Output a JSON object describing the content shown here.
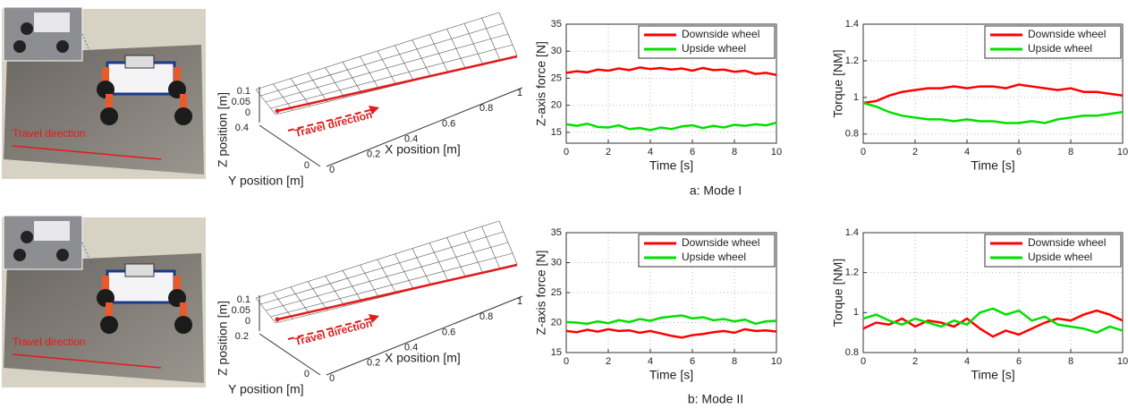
{
  "panels": [
    {
      "caption": "a: Mode I",
      "photo_label": "Travel  direction",
      "surface": {
        "annotation": "Travel direction",
        "xlabel": "X position [m]",
        "ylabel": "Y position [m]",
        "zlabel": "Z position [m]",
        "zticks": [
          "0.1",
          "0.05",
          "0"
        ],
        "yticks": [
          "0.4",
          "0"
        ],
        "xticks": [
          "0",
          "0.2",
          "0.4",
          "0.6",
          "0.8",
          "1"
        ]
      }
    },
    {
      "caption": "b: Mode II",
      "photo_label": "Travel  direction",
      "surface": {
        "annotation": "Travel direction",
        "xlabel": "X position [m]",
        "ylabel": "Y position [m]",
        "zlabel": "Z position [m]",
        "zticks": [
          "0.1",
          "0.05",
          "0"
        ],
        "yticks": [
          "0.2",
          "0"
        ],
        "xticks": [
          "0",
          "0.2",
          "0.4",
          "0.6",
          "0.8",
          "1"
        ]
      }
    }
  ],
  "chart_data": [
    {
      "type": "line",
      "xlabel": "Time  [s]",
      "ylabel": "Z-axis force [N]",
      "xlim": [
        0,
        10
      ],
      "ylim": [
        13,
        35
      ],
      "xticks": [
        0,
        2,
        4,
        6,
        8,
        10
      ],
      "yticks": [
        15,
        20,
        25,
        30,
        35
      ],
      "grid": true,
      "legend": "upper right",
      "x": [
        0,
        0.5,
        1,
        1.5,
        2,
        2.5,
        3,
        3.5,
        4,
        4.5,
        5,
        5.5,
        6,
        6.5,
        7,
        7.5,
        8,
        8.5,
        9,
        9.5,
        10
      ],
      "series": [
        {
          "name": "Downside wheel",
          "color": "#ff0000",
          "values": [
            26,
            26.3,
            26.1,
            26.6,
            26.4,
            26.8,
            26.5,
            27,
            26.7,
            26.9,
            26.6,
            26.8,
            26.4,
            26.9,
            26.5,
            26.6,
            26.2,
            26.4,
            25.8,
            26,
            25.6
          ]
        },
        {
          "name": "Upside wheel",
          "color": "#00e000",
          "values": [
            16.5,
            16.2,
            16.6,
            16,
            15.9,
            16.3,
            15.6,
            15.8,
            15.4,
            15.9,
            15.6,
            16.1,
            16.3,
            15.8,
            16.2,
            15.9,
            16.4,
            16.2,
            16.5,
            16.3,
            16.8
          ]
        }
      ]
    },
    {
      "type": "line",
      "xlabel": "Time [s]",
      "ylabel": "Torque [NM]",
      "xlim": [
        0,
        10
      ],
      "ylim": [
        0.75,
        1.4
      ],
      "xticks": [
        0,
        2,
        4,
        6,
        8,
        10
      ],
      "yticks": [
        0.8,
        1,
        1.2,
        1.4
      ],
      "grid": true,
      "legend": "upper right",
      "x": [
        0,
        0.5,
        1,
        1.5,
        2,
        2.5,
        3,
        3.5,
        4,
        4.5,
        5,
        5.5,
        6,
        6.5,
        7,
        7.5,
        8,
        8.5,
        9,
        9.5,
        10
      ],
      "series": [
        {
          "name": "Downside wheel",
          "color": "#ff0000",
          "values": [
            0.97,
            0.98,
            1.01,
            1.03,
            1.04,
            1.05,
            1.05,
            1.06,
            1.05,
            1.06,
            1.06,
            1.05,
            1.07,
            1.06,
            1.05,
            1.04,
            1.05,
            1.03,
            1.03,
            1.02,
            1.01
          ]
        },
        {
          "name": "Upside wheel",
          "color": "#00e000",
          "values": [
            0.97,
            0.95,
            0.92,
            0.9,
            0.89,
            0.88,
            0.88,
            0.87,
            0.88,
            0.87,
            0.87,
            0.86,
            0.86,
            0.87,
            0.86,
            0.88,
            0.89,
            0.9,
            0.9,
            0.91,
            0.92
          ]
        }
      ]
    },
    {
      "type": "line",
      "xlabel": "Time  [s]",
      "ylabel": "Z-axis force [N]",
      "xlim": [
        0,
        10
      ],
      "ylim": [
        15,
        35
      ],
      "xticks": [
        0,
        2,
        4,
        6,
        8,
        10
      ],
      "yticks": [
        15,
        20,
        25,
        30,
        35
      ],
      "grid": true,
      "legend": "upper right",
      "x": [
        0,
        0.5,
        1,
        1.5,
        2,
        2.5,
        3,
        3.5,
        4,
        4.5,
        5,
        5.5,
        6,
        6.5,
        7,
        7.5,
        8,
        8.5,
        9,
        9.5,
        10
      ],
      "series": [
        {
          "name": "Downside wheel",
          "color": "#ff0000",
          "values": [
            18.6,
            18.4,
            18.8,
            18.5,
            18.9,
            18.6,
            18.7,
            18.3,
            18.6,
            18.2,
            17.8,
            17.5,
            17.9,
            18.1,
            18.4,
            18.6,
            18.3,
            18.9,
            18.6,
            18.7,
            18.5
          ]
        },
        {
          "name": "Upside wheel",
          "color": "#00e000",
          "values": [
            20.1,
            20,
            19.8,
            20.2,
            19.9,
            20.4,
            20.1,
            20.6,
            20.3,
            20.8,
            21,
            21.2,
            20.7,
            20.9,
            20.4,
            20.6,
            20.2,
            20.5,
            19.8,
            20.2,
            20.3
          ]
        }
      ]
    },
    {
      "type": "line",
      "xlabel": "Time [s]",
      "ylabel": "Torque [NM]",
      "xlim": [
        0,
        10
      ],
      "ylim": [
        0.8,
        1.4
      ],
      "xticks": [
        0,
        2,
        4,
        6,
        8,
        10
      ],
      "yticks": [
        0.8,
        1,
        1.2,
        1.4
      ],
      "grid": true,
      "legend": "upper right",
      "x": [
        0,
        0.5,
        1,
        1.5,
        2,
        2.5,
        3,
        3.5,
        4,
        4.5,
        5,
        5.5,
        6,
        6.5,
        7,
        7.5,
        8,
        8.5,
        9,
        9.5,
        10
      ],
      "series": [
        {
          "name": "Downside wheel",
          "color": "#ff0000",
          "values": [
            0.92,
            0.95,
            0.94,
            0.97,
            0.93,
            0.96,
            0.95,
            0.93,
            0.97,
            0.92,
            0.88,
            0.91,
            0.89,
            0.92,
            0.95,
            0.97,
            0.96,
            0.99,
            1.01,
            0.99,
            0.96
          ]
        },
        {
          "name": "Upside wheel",
          "color": "#00e000",
          "values": [
            0.97,
            0.99,
            0.96,
            0.94,
            0.97,
            0.95,
            0.93,
            0.96,
            0.94,
            1.0,
            1.02,
            0.99,
            1.01,
            0.96,
            0.98,
            0.94,
            0.93,
            0.92,
            0.9,
            0.93,
            0.91
          ]
        }
      ]
    }
  ]
}
